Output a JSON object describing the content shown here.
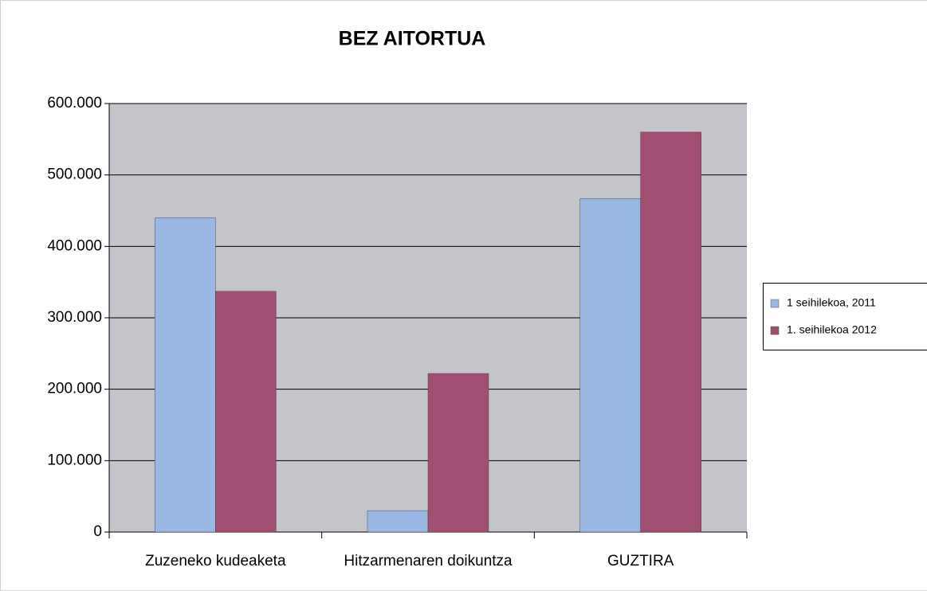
{
  "chart_data": {
    "type": "bar",
    "title": "BEZ AITORTUA",
    "categories": [
      "Zuzeneko kudeaketa",
      "Hitzarmenaren doikuntza",
      "GUZTIRA"
    ],
    "series": [
      {
        "name": "1 seihilekoa, 2011",
        "color": "#99b8e3",
        "values": [
          440000,
          30000,
          467000
        ]
      },
      {
        "name": "1. seihilekoa 2012",
        "color": "#a04f73",
        "values": [
          337000,
          222000,
          560000
        ]
      }
    ],
    "ylim": [
      0,
      600000
    ],
    "yticks": [
      0,
      {
        "value": 100000,
        "label": "100.000"
      },
      {
        "value": 200000,
        "label": "200.000"
      },
      {
        "value": 300000,
        "label": "300.000"
      },
      {
        "value": 400000,
        "label": "400.000"
      },
      {
        "value": 500000,
        "label": "500.000"
      },
      {
        "value": 600000,
        "label": "600.000"
      }
    ],
    "grid": true,
    "legend": "right",
    "plot_background": "#c4c4cb"
  }
}
